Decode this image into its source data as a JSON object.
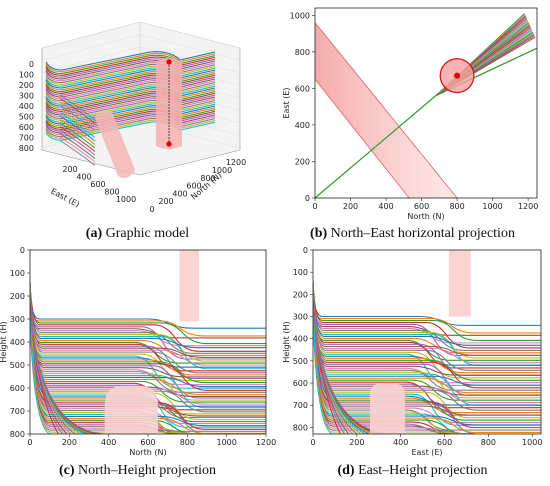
{
  "chart_data": [
    {
      "id": "a",
      "type": "3d-surface",
      "caption_tag": "(a)",
      "caption_text": "Graphic model",
      "xlabel": "East (E)",
      "ylabel": "North (N)",
      "xticks": [
        "200",
        "400",
        "600",
        "800",
        "1000"
      ],
      "yticks": [
        "0",
        "200",
        "400",
        "600",
        "800",
        "1000",
        "1200"
      ],
      "zticks": [
        "0",
        "100",
        "200",
        "300",
        "400",
        "500",
        "600",
        "700",
        "800"
      ],
      "zlim": [
        0,
        800
      ]
    },
    {
      "id": "b",
      "type": "line",
      "caption_tag": "(b)",
      "caption_text": "North–East horizontal projection",
      "xlabel": "North (N)",
      "ylabel": "East (E)",
      "xlim": [
        0,
        1250
      ],
      "ylim": [
        0,
        1040
      ],
      "xticks": [
        0,
        200,
        400,
        600,
        800,
        1000,
        1200
      ],
      "yticks": [
        0,
        200,
        400,
        600,
        800,
        1000
      ],
      "series": [
        {
          "values": [
            [
              0,
              0
            ],
            [
              680,
              560
            ],
            [
              1250,
              820
            ]
          ]
        }
      ],
      "fan_end_points": [
        [
          1180,
          1010
        ],
        [
          1200,
          990
        ],
        [
          1220,
          960
        ],
        [
          1230,
          920
        ],
        [
          1240,
          880
        ]
      ],
      "band_upper": [
        [
          0,
          960
        ],
        [
          800,
          0
        ]
      ],
      "band_lower": [
        [
          0,
          650
        ],
        [
          530,
          0
        ]
      ],
      "circle_center": [
        800,
        670
      ],
      "circle_radius": 95,
      "circle_marker": [
        800,
        670
      ]
    },
    {
      "id": "c",
      "type": "line",
      "caption_tag": "(c)",
      "caption_text": "North–Height projection",
      "xlabel": "North (N)",
      "ylabel": "Height (H)",
      "xlim": [
        0,
        1200
      ],
      "ylim": [
        800,
        0
      ],
      "xticks": [
        0,
        200,
        400,
        600,
        800,
        1000,
        1200
      ],
      "yticks": [
        0,
        100,
        200,
        300,
        400,
        500,
        600,
        700,
        800
      ],
      "plateau_start_depth": 300,
      "plateau_end_depth": 800,
      "column_x": [
        760,
        860
      ],
      "column_y": [
        0,
        310
      ],
      "bump_x": [
        380,
        650
      ],
      "bump_top": 590
    },
    {
      "id": "d",
      "type": "line",
      "caption_tag": "(d)",
      "caption_text": "East–Height projection",
      "xlabel": "East (E)",
      "ylabel": "Height (H)",
      "xlim": [
        0,
        1040
      ],
      "ylim": [
        830,
        0
      ],
      "xticks": [
        0,
        200,
        400,
        600,
        800,
        1000
      ],
      "yticks": [
        0,
        100,
        200,
        300,
        400,
        500,
        600,
        700,
        800
      ],
      "plateau_start_depth": 300,
      "plateau_end_depth": 830,
      "column_x": [
        620,
        720
      ],
      "column_y": [
        0,
        300
      ],
      "bump_x": [
        260,
        420
      ],
      "bump_top": 600
    }
  ]
}
